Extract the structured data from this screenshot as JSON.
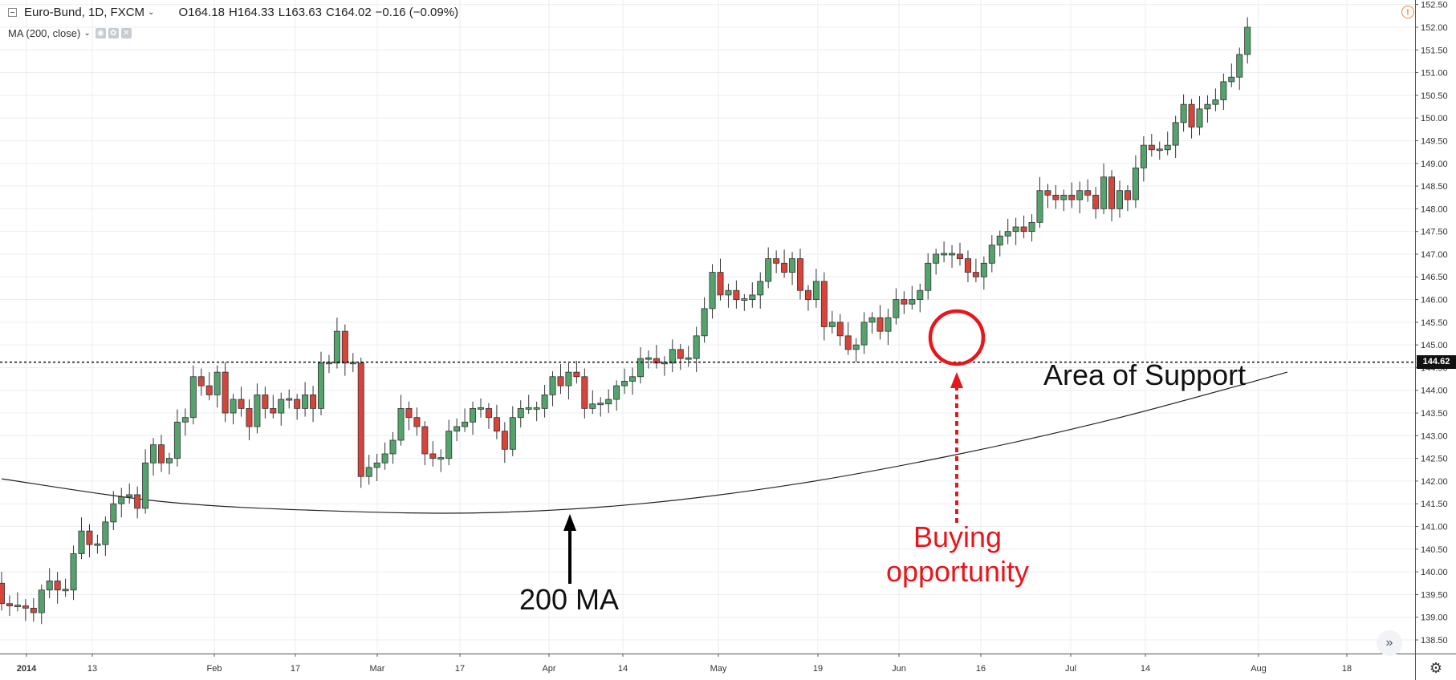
{
  "header": {
    "symbol": "Euro-Bund, 1D, FXCM",
    "open": "O164.18",
    "high": "H164.33",
    "low": "L163.63",
    "close": "C164.02",
    "change": "−0.16 (−0.09%)",
    "indicator": "MA (200, close)"
  },
  "price_tag": "144.62",
  "annotations": {
    "support": "Area of Support",
    "ma_label": "200 MA",
    "buy_line1": "Buying",
    "buy_line2": "opportunity"
  },
  "colors": {
    "up": "#53a36c",
    "down": "#d6443a",
    "ma_line": "#222222",
    "annotation_red": "#e8161b",
    "grid": "#e9edf2"
  },
  "chart_data": {
    "type": "candlestick",
    "title": "Euro-Bund, 1D, FXCM",
    "x_ticks": [
      "2014",
      "13",
      "Feb",
      "17",
      "Mar",
      "17",
      "Apr",
      "14",
      "May",
      "19",
      "Jun",
      "16",
      "Jul",
      "14",
      "Aug",
      "18"
    ],
    "y_ticks": [
      "138.50",
      "139.00",
      "139.50",
      "140.00",
      "140.50",
      "141.00",
      "141.50",
      "142.00",
      "142.50",
      "143.00",
      "143.50",
      "144.00",
      "144.50",
      "145.00",
      "145.50",
      "146.00",
      "146.50",
      "147.00",
      "147.50",
      "148.00",
      "148.50",
      "149.00",
      "149.50",
      "150.00",
      "150.50",
      "151.00",
      "151.50",
      "152.00",
      "152.50"
    ],
    "ylim": [
      138.2,
      152.6
    ],
    "support_level": 144.62,
    "closes": [
      139.3,
      139.25,
      139.25,
      139.2,
      139.1,
      139.6,
      139.8,
      139.6,
      139.6,
      140.4,
      140.9,
      140.6,
      140.6,
      141.1,
      141.5,
      141.65,
      141.7,
      141.4,
      142.4,
      142.8,
      142.4,
      142.5,
      143.3,
      143.4,
      144.3,
      144.1,
      143.9,
      144.4,
      143.5,
      143.8,
      143.6,
      143.2,
      143.9,
      143.6,
      143.5,
      143.8,
      143.8,
      143.6,
      143.9,
      143.6,
      144.6,
      144.6,
      145.3,
      144.6,
      144.6,
      142.1,
      142.3,
      142.4,
      142.6,
      142.9,
      143.6,
      143.4,
      143.2,
      142.6,
      142.5,
      142.5,
      143.1,
      143.2,
      143.3,
      143.6,
      143.6,
      143.4,
      143.1,
      142.7,
      143.4,
      143.6,
      143.6,
      143.6,
      143.9,
      144.3,
      144.1,
      144.4,
      144.3,
      143.6,
      143.7,
      143.7,
      143.8,
      144.1,
      144.2,
      144.3,
      144.7,
      144.7,
      144.6,
      144.6,
      144.9,
      144.7,
      144.7,
      145.2,
      145.8,
      146.6,
      146.1,
      146.2,
      146.0,
      146.0,
      146.1,
      146.4,
      146.9,
      146.8,
      146.6,
      146.9,
      146.2,
      146.0,
      146.4,
      145.4,
      145.5,
      145.2,
      144.9,
      145.0,
      145.5,
      145.6,
      145.3,
      145.6,
      146.0,
      145.9,
      146.0,
      146.2,
      146.8,
      147.0,
      147.0,
      147.0,
      146.9,
      146.6,
      146.5,
      146.8,
      147.2,
      147.4,
      147.5,
      147.6,
      147.5,
      147.7,
      148.4,
      148.3,
      148.2,
      148.3,
      148.2,
      148.4,
      148.3,
      148.0,
      148.7,
      148.0,
      148.4,
      148.2,
      148.9,
      149.4,
      149.3,
      149.3,
      149.4,
      149.9,
      150.3,
      149.8,
      150.2,
      150.3,
      150.4,
      150.8,
      150.9,
      151.4,
      152.0
    ],
    "ma_200": {
      "name": "MA (200, close)",
      "x_index": [
        0,
        20,
        40,
        60,
        80,
        100,
        120,
        140,
        161
      ],
      "values": [
        142.05,
        141.55,
        141.35,
        141.3,
        141.5,
        141.95,
        142.6,
        143.4,
        144.4
      ]
    }
  }
}
